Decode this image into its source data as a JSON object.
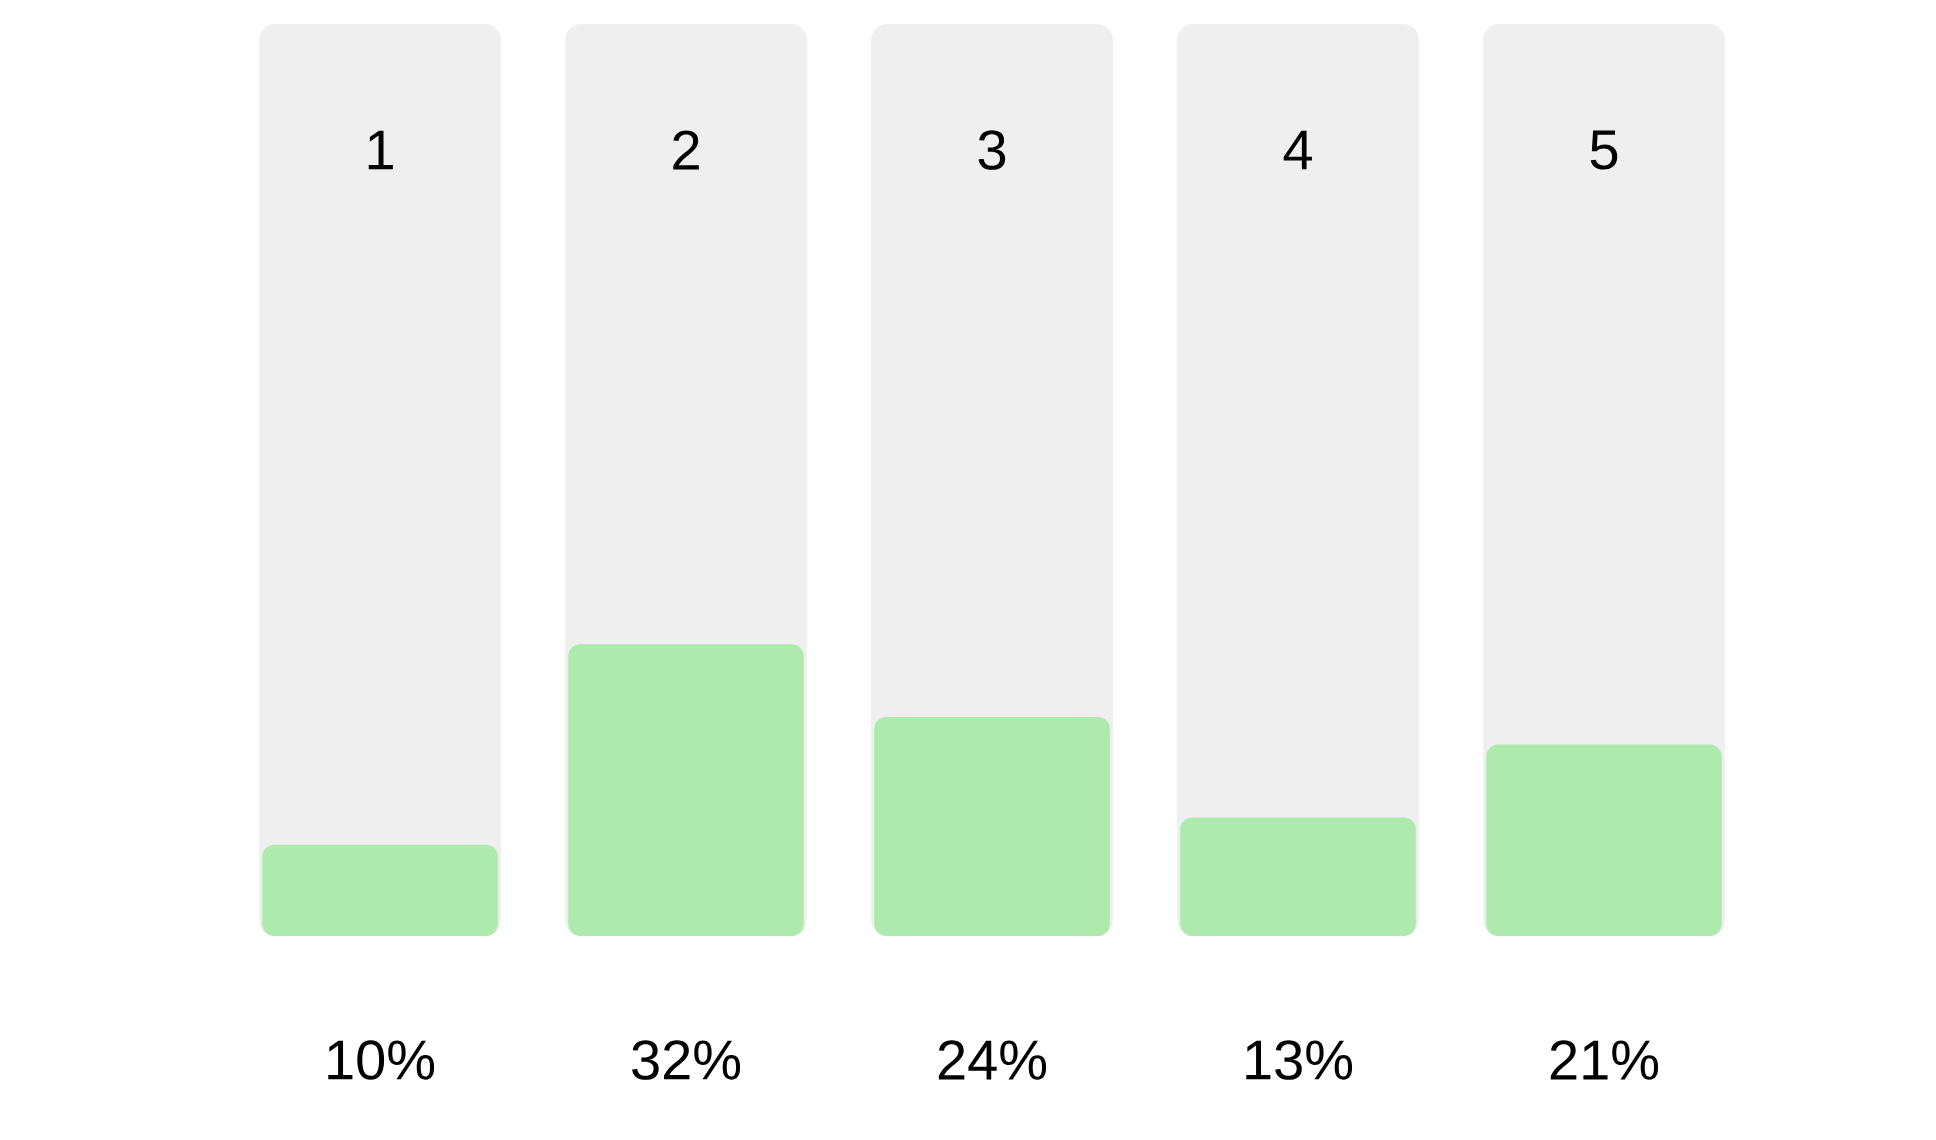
{
  "chart_data": {
    "type": "bar",
    "categories": [
      "1",
      "2",
      "3",
      "4",
      "5"
    ],
    "values": [
      10,
      32,
      24,
      13,
      21
    ],
    "value_labels": [
      "10%",
      "32%",
      "24%",
      "13%",
      "21%"
    ],
    "color": "#aeeaae",
    "ylim": [
      0,
      100
    ]
  }
}
